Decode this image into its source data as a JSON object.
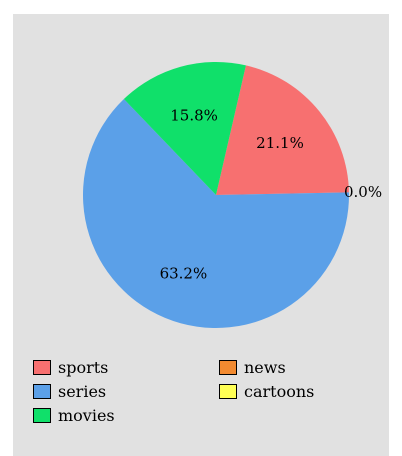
{
  "chart_data": {
    "type": "pie",
    "categories": [
      "sports",
      "news",
      "series",
      "cartoons",
      "movies"
    ],
    "values": [
      21.1,
      0.0,
      63.2,
      0.0,
      15.8
    ],
    "labels": [
      "21.1%",
      "0.0%",
      "63.2%",
      "",
      "15.8%"
    ],
    "colors": [
      "#f77070",
      "#f28a30",
      "#5ba0e8",
      "#ffff55",
      "#10e06a"
    ],
    "legend_position": "bottom",
    "title": ""
  },
  "legend": {
    "items": [
      {
        "label": "sports",
        "color": "#f77070"
      },
      {
        "label": "series",
        "color": "#5ba0e8"
      },
      {
        "label": "movies",
        "color": "#10e06a"
      },
      {
        "label": "news",
        "color": "#f28a30"
      },
      {
        "label": "cartoons",
        "color": "#ffff55"
      }
    ]
  }
}
